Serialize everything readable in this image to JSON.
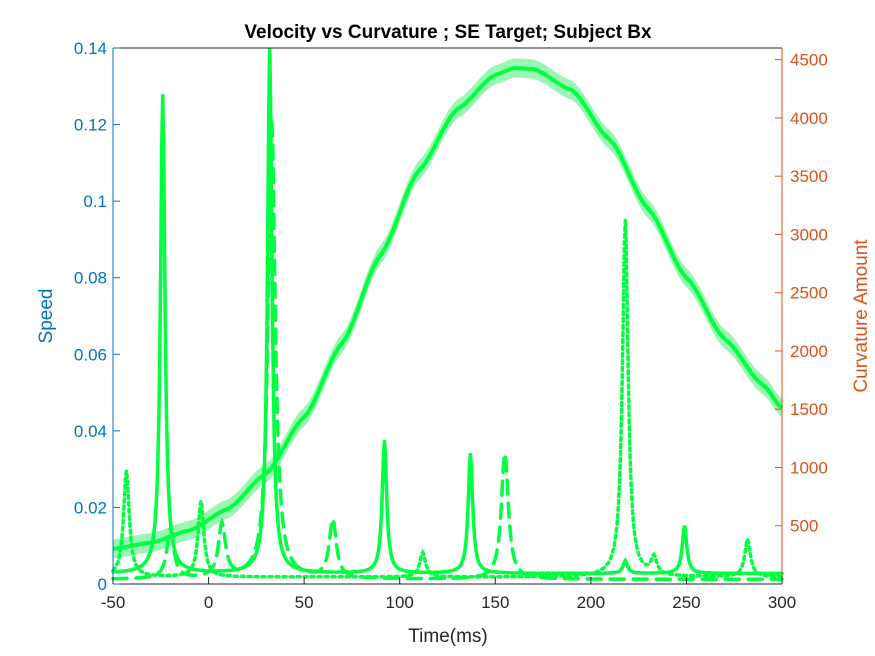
{
  "chart_data": {
    "type": "line",
    "title": "Velocity vs Curvature ; SE Target; Subject Bx",
    "xlabel": "Time(ms)",
    "ylabel_left": "Speed",
    "ylabel_right": "Curvature Amount",
    "xlim": [
      -50,
      300
    ],
    "ylim_left": [
      0,
      0.14
    ],
    "ylim_right": [
      0,
      4600
    ],
    "xticks": [
      -50,
      0,
      50,
      100,
      150,
      200,
      250,
      300
    ],
    "yticks_left": [
      0,
      0.02,
      0.04,
      0.06,
      0.08,
      0.1,
      0.12,
      0.14
    ],
    "yticks_right": [
      500,
      1000,
      1500,
      2000,
      2500,
      3000,
      3500,
      4000,
      4500
    ],
    "grid": false,
    "colors": {
      "left_axis": "#0072BD",
      "right_axis": "#D95319",
      "series": "#00FF40",
      "band": "#8AF5A6"
    },
    "speed_profile": {
      "axis": "left",
      "style": "solid",
      "x": [
        -50,
        -30,
        -10,
        10,
        30,
        50,
        70,
        90,
        110,
        130,
        150,
        160,
        170,
        190,
        210,
        230,
        250,
        270,
        290,
        300
      ],
      "y": [
        0.0092,
        0.0108,
        0.014,
        0.0196,
        0.0288,
        0.0436,
        0.063,
        0.086,
        0.108,
        0.124,
        0.133,
        0.1348,
        0.1345,
        0.129,
        0.116,
        0.098,
        0.08,
        0.064,
        0.052,
        0.046
      ],
      "band_halfwidth": 0.0025
    },
    "curvature_peaks": [
      {
        "axis": "right",
        "style": "solid",
        "x": [
          -24,
          32,
          92,
          137,
          218,
          249
        ],
        "y": [
          4200,
          4600,
          1230,
          1120,
          200,
          500
        ]
      },
      {
        "axis": "right",
        "style": "dashed",
        "x": [
          -20,
          7,
          33,
          65,
          155
        ],
        "y": [
          460,
          500,
          4000,
          540,
          1120
        ]
      },
      {
        "axis": "right",
        "style": "dotted",
        "x": [
          -43,
          -4,
          112,
          218,
          233,
          282
        ],
        "y": [
          970,
          710,
          270,
          3120,
          210,
          380
        ]
      }
    ]
  }
}
